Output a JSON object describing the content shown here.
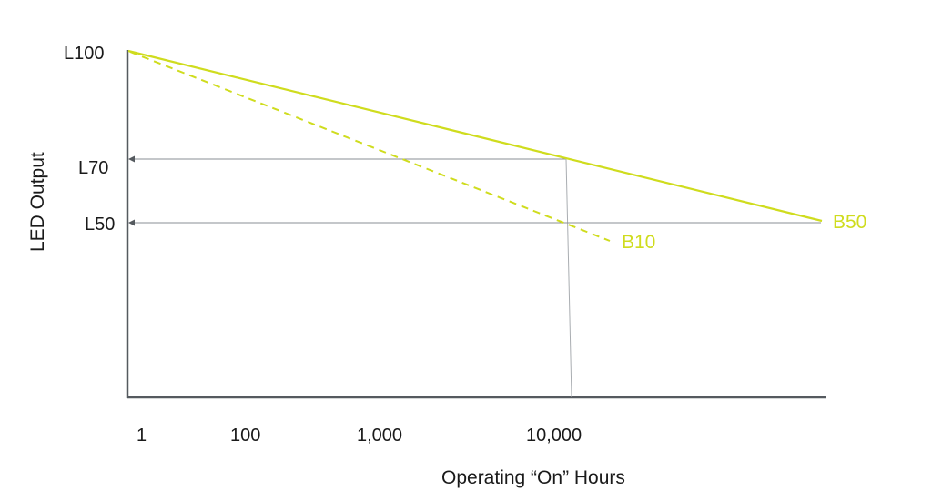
{
  "chart_data": {
    "type": "line",
    "xlabel": "Operating “On” Hours",
    "ylabel": "LED Output",
    "x_ticks": [
      "1",
      "100",
      "1,000",
      "10,000"
    ],
    "y_ticks": [
      "L100",
      "L70",
      "L50"
    ],
    "series": [
      {
        "name": "B50",
        "style": "solid",
        "color": "#cfdc1e",
        "points": [
          {
            "x": "1",
            "y": "L100"
          },
          {
            "x": "end",
            "y": "L50"
          }
        ]
      },
      {
        "name": "B10",
        "style": "dashed",
        "color": "#cfdc1e",
        "points": [
          {
            "x": "1",
            "y": "L100"
          },
          {
            "x": "10,000",
            "y": "L50"
          }
        ]
      }
    ],
    "reference_lines": [
      {
        "y": "L70",
        "to_x": "10,000"
      },
      {
        "y": "L50",
        "to_series": "B50"
      }
    ],
    "axis_color": "#555a5f",
    "grid": false
  }
}
